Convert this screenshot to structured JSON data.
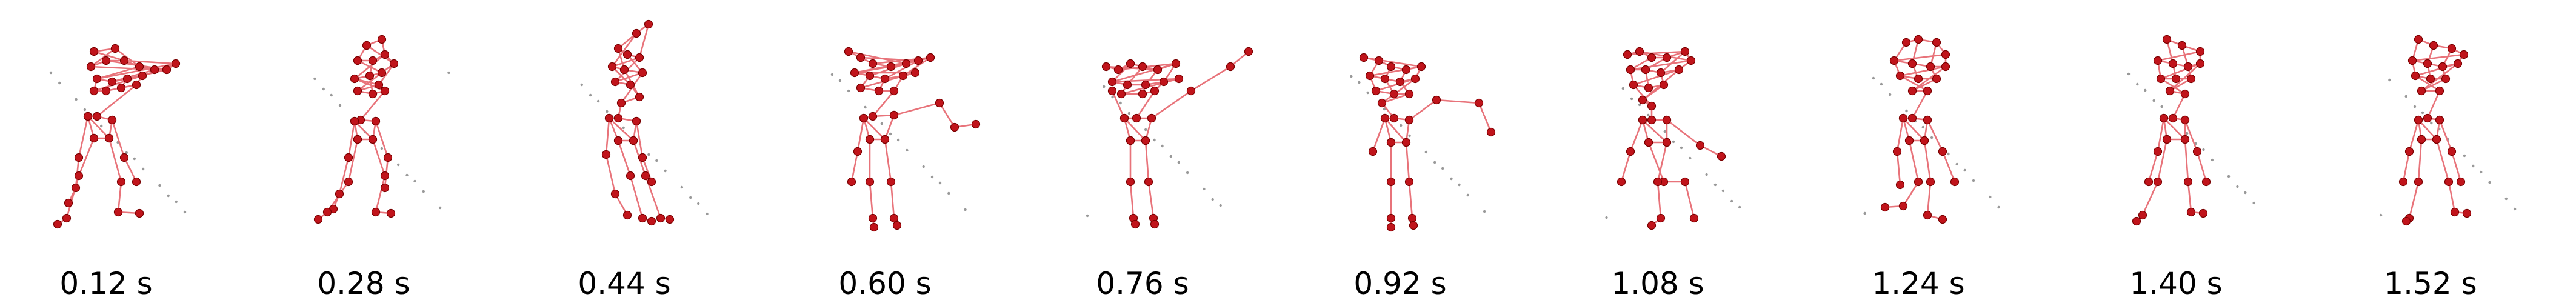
{
  "figure": {
    "colors": {
      "joint": "#c0141b",
      "joint_edge": "#7a0000",
      "bone": "#e8737a",
      "noise": "#555555"
    },
    "frames": [
      {
        "label": "0.12 s"
      },
      {
        "label": "0.28 s"
      },
      {
        "label": "0.44 s"
      },
      {
        "label": "0.60 s"
      },
      {
        "label": "0.76 s"
      },
      {
        "label": "0.92 s"
      },
      {
        "label": "1.08 s"
      },
      {
        "label": "1.24 s"
      },
      {
        "label": "1.40 s"
      },
      {
        "label": "1.52 s"
      }
    ]
  }
}
